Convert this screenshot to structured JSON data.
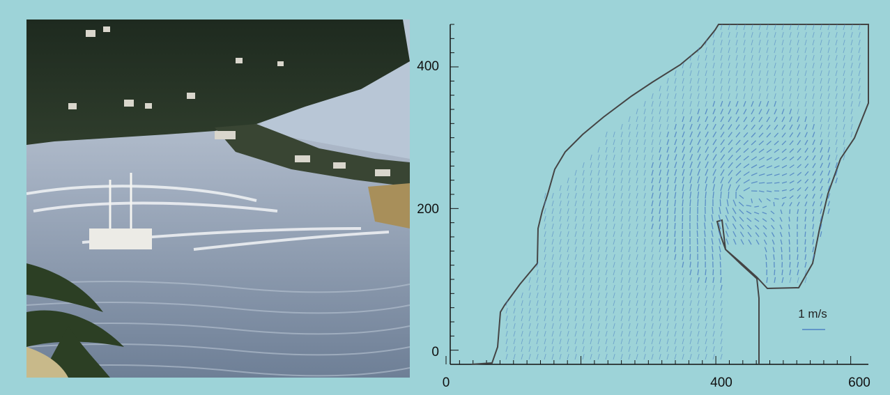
{
  "photo": {
    "subject": "aerial-photo-of-harbor-with-boats-and-eddy"
  },
  "plot": {
    "x_ticks": [
      "0",
      "400",
      "600"
    ],
    "y_ticks": [
      "0",
      "200",
      "400"
    ],
    "x_range": [
      0,
      620
    ],
    "y_range": [
      -20,
      460
    ],
    "scale_label": "1 m/s",
    "colors": {
      "vectors": "#4f82c4",
      "coast": "#444444",
      "axes": "#111111"
    }
  }
}
